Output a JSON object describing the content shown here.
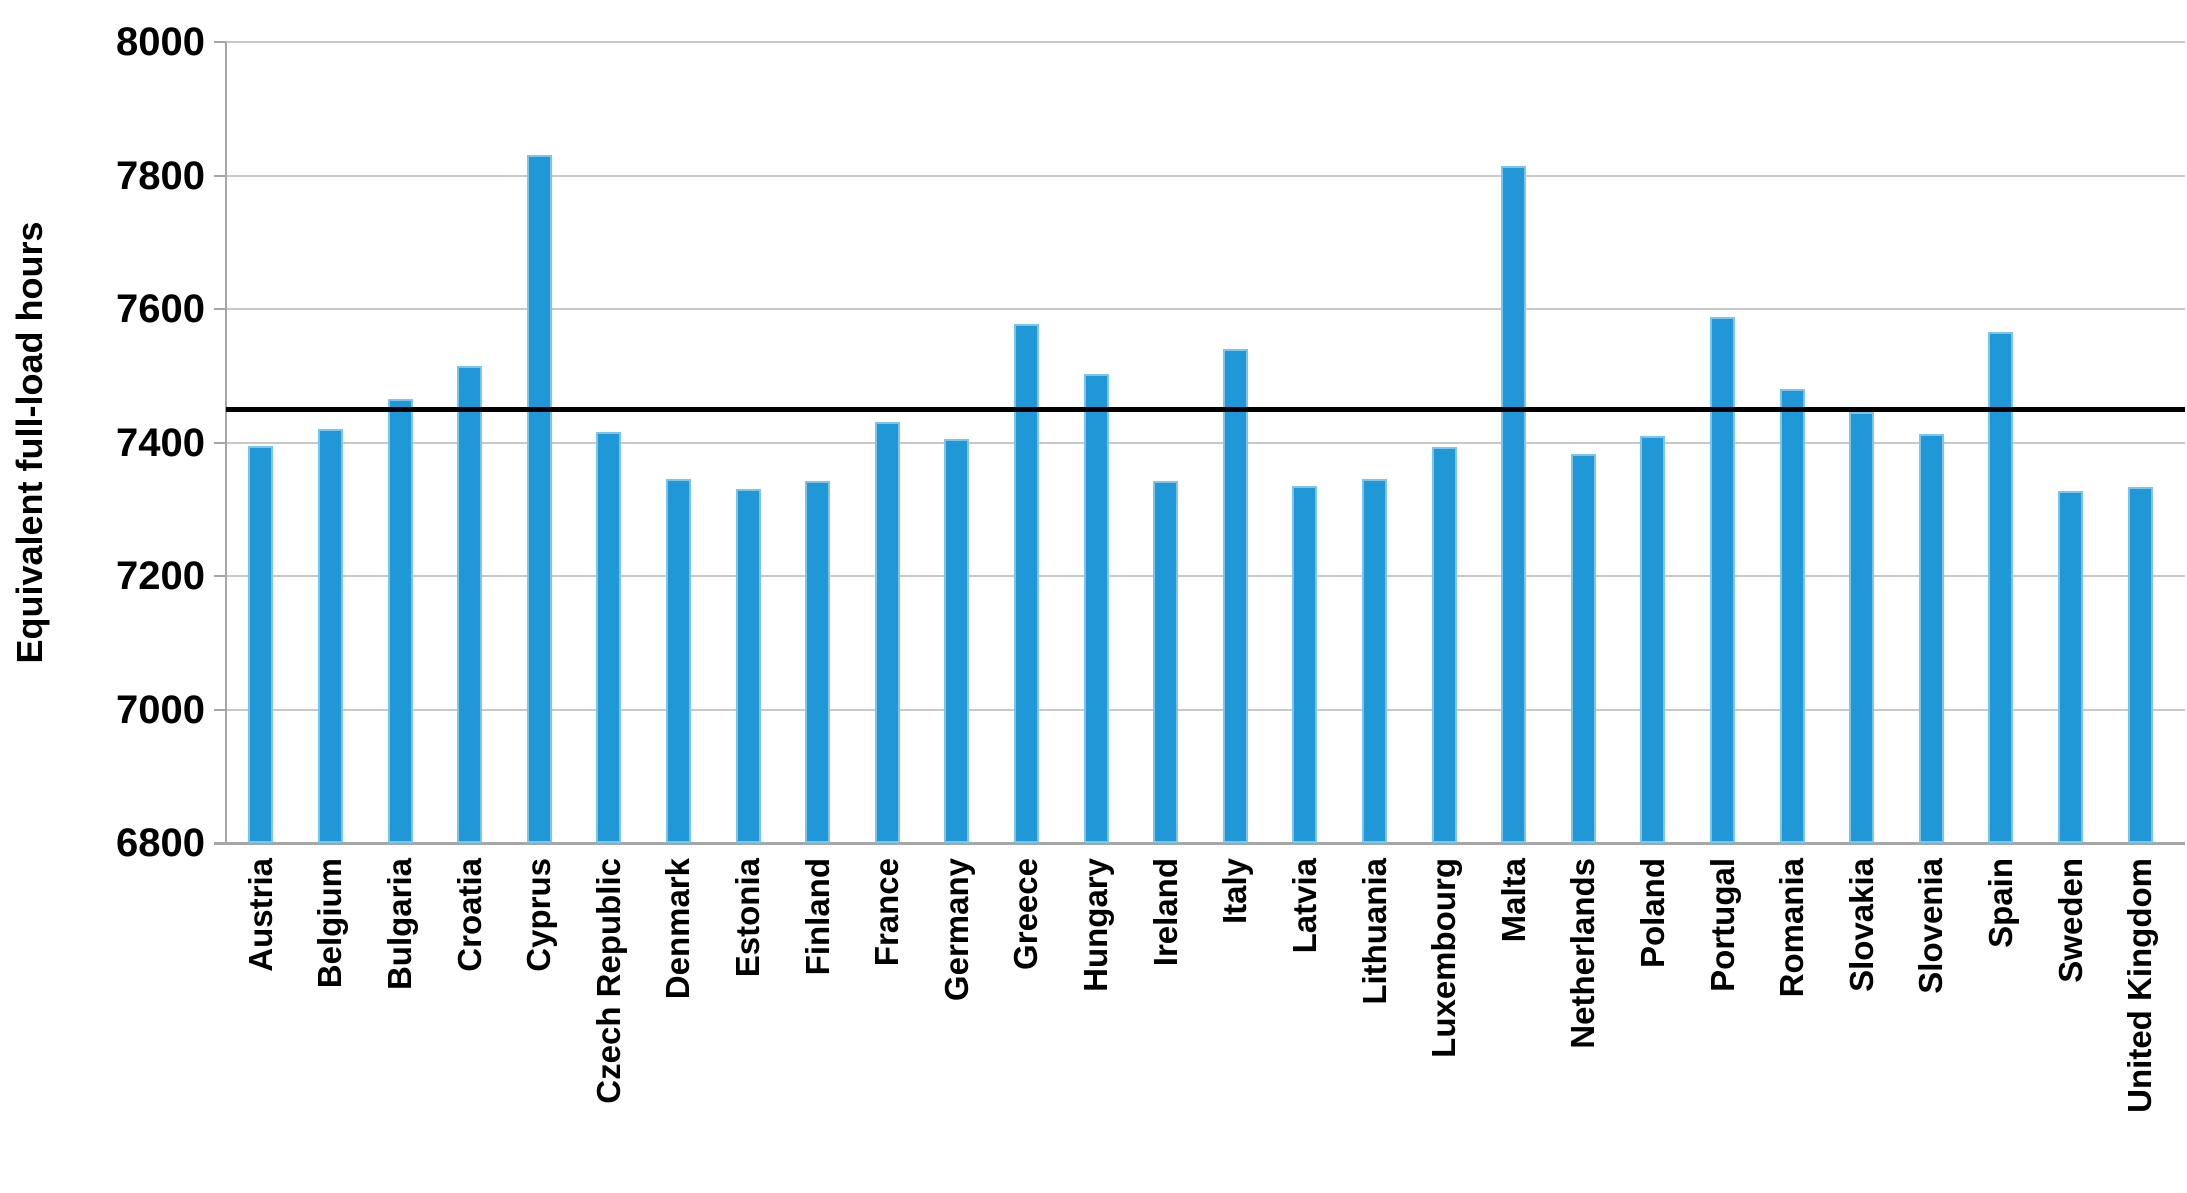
{
  "chart_data": {
    "type": "bar",
    "title": "",
    "xlabel": "",
    "ylabel": "Equivalent full-load hours",
    "ylim": [
      6800,
      8000
    ],
    "ytick_step": 200,
    "yticks": [
      "8000",
      "7800",
      "7600",
      "7400",
      "7200",
      "7000",
      "6800"
    ],
    "grid": true,
    "legend_position": "none",
    "categories": [
      "Austria",
      "Belgium",
      "Bulgaria",
      "Croatia",
      "Cyprus",
      "Czech Republic",
      "Denmark",
      "Estonia",
      "Finland",
      "France",
      "Germany",
      "Greece",
      "Hungary",
      "Ireland",
      "Italy",
      "Latvia",
      "Lithuania",
      "Luxembourg",
      "Malta",
      "Netherlands",
      "Poland",
      "Portugal",
      "Romania",
      "Slovakia",
      "Slovenia",
      "Spain",
      "Sweden",
      "United Kingdom"
    ],
    "values": [
      7395,
      7420,
      7465,
      7515,
      7830,
      7415,
      7345,
      7330,
      7343,
      7430,
      7405,
      7578,
      7503,
      7343,
      7540,
      7335,
      7345,
      7393,
      7814,
      7383,
      7410,
      7588,
      7480,
      7445,
      7413,
      7565,
      7328,
      7333
    ],
    "reference_line": {
      "value": 7450,
      "color": "#000000"
    },
    "colors": {
      "bar_fill": "#2097d6",
      "bar_border": "#7ec4e8",
      "gridline": "#c8c8c8",
      "axis": "#a6a6a6",
      "text": "#000000",
      "background": "#ffffff"
    }
  }
}
